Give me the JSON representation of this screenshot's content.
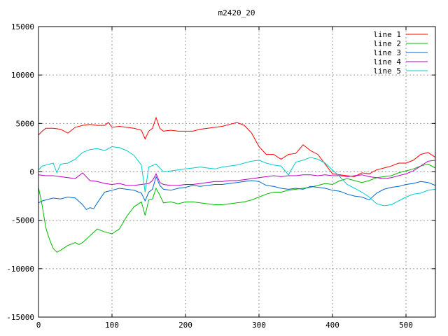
{
  "chart_data": {
    "type": "line",
    "title": "m2420_20",
    "xlabel": "",
    "ylabel": "",
    "xlim": [
      0,
      540
    ],
    "ylim": [
      -15000,
      15000
    ],
    "xticks": [
      0,
      100,
      200,
      300,
      400,
      500
    ],
    "yticks": [
      -15000,
      -10000,
      -5000,
      0,
      5000,
      10000,
      15000
    ],
    "grid": true,
    "legend": "top-right",
    "series": [
      {
        "name": "line 1",
        "color": "#ff0000",
        "x": [
          0,
          5,
          10,
          20,
          30,
          40,
          50,
          60,
          70,
          80,
          90,
          95,
          100,
          110,
          120,
          130,
          140,
          145,
          150,
          155,
          160,
          165,
          170,
          180,
          190,
          200,
          210,
          220,
          230,
          240,
          250,
          260,
          270,
          280,
          290,
          300,
          310,
          320,
          330,
          340,
          350,
          360,
          370,
          380,
          390,
          400,
          410,
          420,
          430,
          440,
          450,
          460,
          470,
          480,
          490,
          500,
          510,
          520,
          530,
          540
        ],
        "y": [
          3800,
          4200,
          4500,
          4500,
          4400,
          4000,
          4600,
          4800,
          4900,
          4800,
          4800,
          5100,
          4600,
          4700,
          4600,
          4500,
          4300,
          3400,
          4200,
          4500,
          5600,
          4500,
          4200,
          4300,
          4200,
          4200,
          4200,
          4400,
          4500,
          4600,
          4700,
          4900,
          5100,
          4800,
          4000,
          2600,
          1800,
          1800,
          1300,
          1800,
          1900,
          2800,
          2200,
          1800,
          800,
          -200,
          -300,
          -400,
          -500,
          -100,
          -200,
          200,
          400,
          600,
          900,
          900,
          1200,
          1800,
          2000,
          1500
        ]
      },
      {
        "name": "line 2",
        "color": "#00bb00",
        "x": [
          0,
          5,
          10,
          15,
          20,
          25,
          30,
          40,
          50,
          55,
          60,
          70,
          80,
          90,
          100,
          110,
          120,
          130,
          140,
          145,
          150,
          155,
          160,
          165,
          170,
          180,
          190,
          200,
          210,
          220,
          230,
          240,
          250,
          260,
          270,
          280,
          290,
          300,
          310,
          320,
          330,
          340,
          350,
          360,
          370,
          380,
          390,
          400,
          410,
          420,
          430,
          440,
          450,
          460,
          470,
          480,
          490,
          500,
          510,
          520,
          530,
          540
        ],
        "y": [
          -1600,
          -3500,
          -5800,
          -7000,
          -7900,
          -8300,
          -8100,
          -7600,
          -7300,
          -7500,
          -7300,
          -6600,
          -5900,
          -6200,
          -6400,
          -5900,
          -4600,
          -3600,
          -3100,
          -4500,
          -2900,
          -2800,
          -1700,
          -2400,
          -3200,
          -3100,
          -3300,
          -3100,
          -3100,
          -3200,
          -3300,
          -3400,
          -3400,
          -3300,
          -3200,
          -3100,
          -2900,
          -2600,
          -2300,
          -2100,
          -2100,
          -1900,
          -1800,
          -1700,
          -1600,
          -1400,
          -1200,
          -1300,
          -900,
          -700,
          -900,
          -1100,
          -900,
          -600,
          -500,
          -400,
          -100,
          100,
          300,
          600,
          800,
          400
        ]
      },
      {
        "name": "line 3",
        "color": "#0066cc",
        "x": [
          0,
          5,
          10,
          20,
          30,
          40,
          50,
          60,
          65,
          70,
          75,
          80,
          90,
          100,
          110,
          120,
          130,
          140,
          145,
          150,
          155,
          160,
          165,
          170,
          180,
          190,
          200,
          210,
          220,
          230,
          240,
          250,
          260,
          270,
          280,
          290,
          300,
          310,
          320,
          330,
          340,
          350,
          360,
          370,
          380,
          390,
          400,
          410,
          420,
          430,
          440,
          450,
          460,
          470,
          480,
          490,
          500,
          510,
          520,
          530,
          540
        ],
        "y": [
          -3200,
          -3000,
          -2900,
          -2700,
          -2800,
          -2600,
          -2700,
          -3400,
          -3900,
          -3700,
          -3800,
          -3200,
          -2100,
          -1900,
          -1700,
          -1800,
          -1900,
          -2200,
          -3000,
          -2100,
          -1800,
          -500,
          -1400,
          -1800,
          -1900,
          -1700,
          -1600,
          -1400,
          -1500,
          -1400,
          -1300,
          -1300,
          -1200,
          -1100,
          -1000,
          -900,
          -1000,
          -1400,
          -1500,
          -1700,
          -1800,
          -1700,
          -1800,
          -1500,
          -1600,
          -1700,
          -1900,
          -2000,
          -2300,
          -2500,
          -2600,
          -2900,
          -2200,
          -1800,
          -1600,
          -1500,
          -1300,
          -1200,
          -1000,
          -1100,
          -1400
        ]
      },
      {
        "name": "line 4",
        "color": "#bb00bb",
        "x": [
          0,
          10,
          20,
          30,
          40,
          50,
          60,
          70,
          80,
          90,
          100,
          110,
          120,
          130,
          140,
          150,
          155,
          160,
          165,
          170,
          180,
          190,
          200,
          210,
          220,
          230,
          240,
          250,
          260,
          270,
          280,
          290,
          300,
          310,
          320,
          330,
          340,
          350,
          360,
          370,
          380,
          390,
          400,
          410,
          420,
          430,
          440,
          450,
          460,
          470,
          480,
          490,
          500,
          510,
          520,
          530,
          540
        ],
        "y": [
          -300,
          -400,
          -400,
          -500,
          -600,
          -700,
          -100,
          -900,
          -1000,
          -1200,
          -1300,
          -1200,
          -1400,
          -1400,
          -1300,
          -1200,
          -900,
          -200,
          -1100,
          -1300,
          -1400,
          -1400,
          -1300,
          -1300,
          -1200,
          -1100,
          -1000,
          -1000,
          -900,
          -900,
          -800,
          -700,
          -600,
          -500,
          -400,
          -500,
          -400,
          -400,
          -300,
          -300,
          -400,
          -300,
          -400,
          -400,
          -500,
          -400,
          -300,
          -500,
          -600,
          -700,
          -600,
          -400,
          -200,
          100,
          600,
          1100,
          1200
        ]
      },
      {
        "name": "line 5",
        "color": "#00cccc",
        "x": [
          0,
          5,
          10,
          20,
          25,
          30,
          40,
          50,
          60,
          70,
          80,
          90,
          100,
          110,
          120,
          130,
          140,
          145,
          150,
          160,
          170,
          180,
          190,
          200,
          210,
          220,
          230,
          240,
          250,
          260,
          270,
          280,
          290,
          300,
          310,
          320,
          330,
          340,
          350,
          360,
          370,
          380,
          390,
          400,
          410,
          420,
          430,
          440,
          450,
          460,
          470,
          480,
          490,
          500,
          510,
          520,
          530,
          540
        ],
        "y": [
          200,
          600,
          700,
          900,
          -100,
          800,
          900,
          1300,
          2000,
          2300,
          2400,
          2200,
          2600,
          2500,
          2200,
          1700,
          700,
          -2100,
          500,
          800,
          0,
          100,
          200,
          300,
          400,
          500,
          400,
          300,
          500,
          600,
          700,
          900,
          1100,
          1200,
          900,
          700,
          600,
          -300,
          1000,
          1200,
          1500,
          1300,
          900,
          200,
          -500,
          -1300,
          -1700,
          -2100,
          -2600,
          -3300,
          -3500,
          -3400,
          -3000,
          -2600,
          -2300,
          -2200,
          -1900,
          -1800
        ]
      }
    ]
  }
}
